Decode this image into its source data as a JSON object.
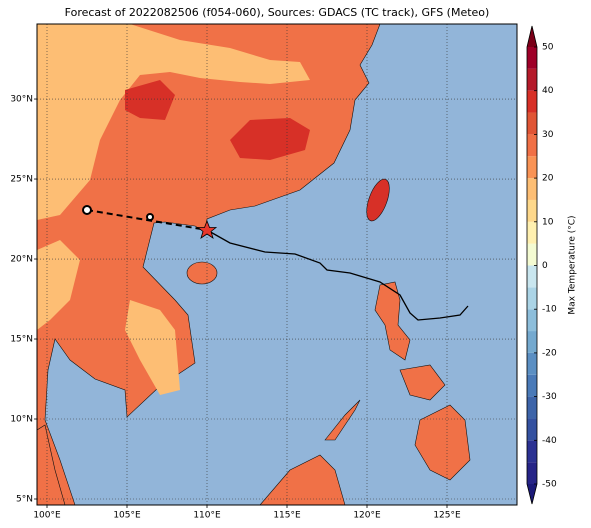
{
  "title": "Forecast of 2022082506 (f054-060), Sources: GDACS (TC track), GFS (Meteo)",
  "map": {
    "lon_range": [
      99.375,
      129.375
    ],
    "lat_range": [
      4.625,
      34.69
    ],
    "lon_ticks": [
      {
        "value": 100,
        "label": "100°E"
      },
      {
        "value": 105,
        "label": "105°E"
      },
      {
        "value": 110,
        "label": "110°E"
      },
      {
        "value": 115,
        "label": "115°E"
      },
      {
        "value": 120,
        "label": "120°E"
      },
      {
        "value": 125,
        "label": "125°E"
      }
    ],
    "lat_ticks": [
      {
        "value": 5,
        "label": "5°N"
      },
      {
        "value": 10,
        "label": "10°N"
      },
      {
        "value": 15,
        "label": "15°N"
      },
      {
        "value": 20,
        "label": "20°N"
      },
      {
        "value": 25,
        "label": "25°N"
      },
      {
        "value": 30,
        "label": "30°N"
      }
    ]
  },
  "colorbar": {
    "label": "Max Temperature (°C)",
    "ticks": [
      -50,
      -40,
      -30,
      -20,
      -10,
      0,
      10,
      20,
      30,
      40,
      50
    ],
    "levels": [
      -50,
      -45,
      -40,
      -35,
      -30,
      -25,
      -20,
      -15,
      -10,
      -5,
      0,
      5,
      10,
      15,
      20,
      25,
      30,
      35,
      40,
      45,
      50
    ],
    "colors": [
      "#262487",
      "#2b3192",
      "#3451a0",
      "#3d64a9",
      "#4a7ab8",
      "#5b8fc3",
      "#74a9cf",
      "#8dbedb",
      "#abd4e6",
      "#c9e6ef",
      "#f4fbd2",
      "#fff0b0",
      "#fed88b",
      "#fdbe74",
      "#f99355",
      "#f07046",
      "#e05535",
      "#d73027",
      "#b51a2a",
      "#9e0028"
    ],
    "extend_colors": [
      "#1b1a78",
      "#7a0018"
    ]
  }
}
